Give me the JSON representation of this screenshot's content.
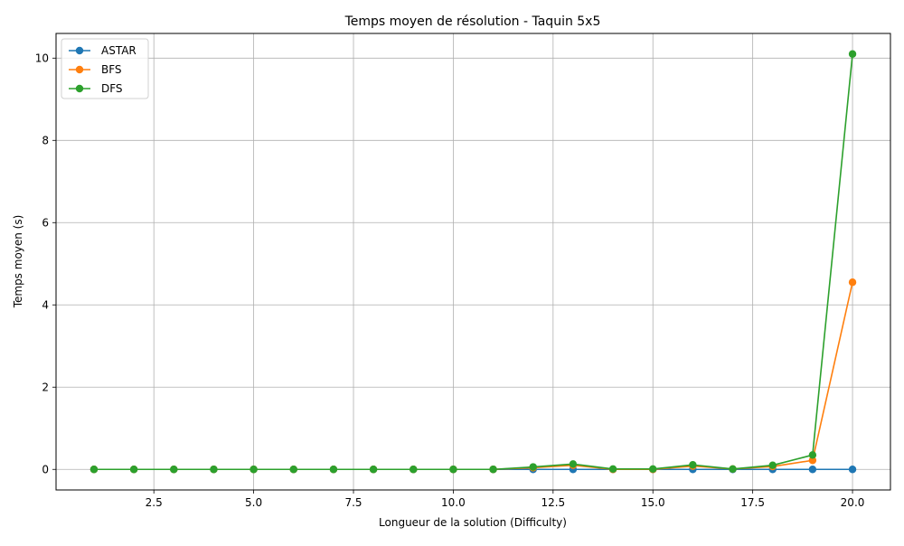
{
  "chart_data": {
    "type": "line",
    "title": "Temps moyen de résolution - Taquin 5x5",
    "xlabel": "Longueur de la solution (Difficulty)",
    "ylabel": "Temps moyen (s)",
    "xlim": [
      0.05,
      20.95
    ],
    "ylim": [
      -0.5,
      10.6
    ],
    "xticks": [
      2.5,
      5.0,
      7.5,
      10.0,
      12.5,
      15.0,
      17.5,
      20.0
    ],
    "xtick_labels": [
      "2.5",
      "5.0",
      "7.5",
      "10.0",
      "12.5",
      "15.0",
      "17.5",
      "20.0"
    ],
    "yticks": [
      0,
      2,
      4,
      6,
      8,
      10
    ],
    "ytick_labels": [
      "0",
      "2",
      "4",
      "6",
      "8",
      "10"
    ],
    "grid": true,
    "legend_position": "top-left",
    "x": [
      1,
      2,
      3,
      4,
      5,
      6,
      7,
      8,
      9,
      10,
      11,
      12,
      13,
      14,
      15,
      16,
      17,
      18,
      19,
      20
    ],
    "series": [
      {
        "name": "ASTAR",
        "color": "#1f77b4",
        "marker": "circle",
        "values": [
          0,
          0,
          0,
          0,
          0,
          0,
          0,
          0,
          0,
          0,
          0,
          0,
          0,
          0,
          0,
          0,
          0,
          0,
          0,
          0
        ]
      },
      {
        "name": "BFS",
        "color": "#ff7f0e",
        "marker": "circle",
        "values": [
          0,
          0,
          0,
          0,
          0,
          0,
          0,
          0,
          0,
          0,
          0,
          0.04,
          0.1,
          0,
          0,
          0.08,
          0.01,
          0.07,
          0.22,
          4.55
        ]
      },
      {
        "name": "DFS",
        "color": "#2ca02c",
        "marker": "circle",
        "values": [
          0,
          0,
          0,
          0,
          0,
          0,
          0,
          0,
          0,
          0,
          0,
          0.06,
          0.13,
          0.01,
          0.01,
          0.11,
          0.01,
          0.1,
          0.35,
          10.1
        ]
      }
    ]
  }
}
